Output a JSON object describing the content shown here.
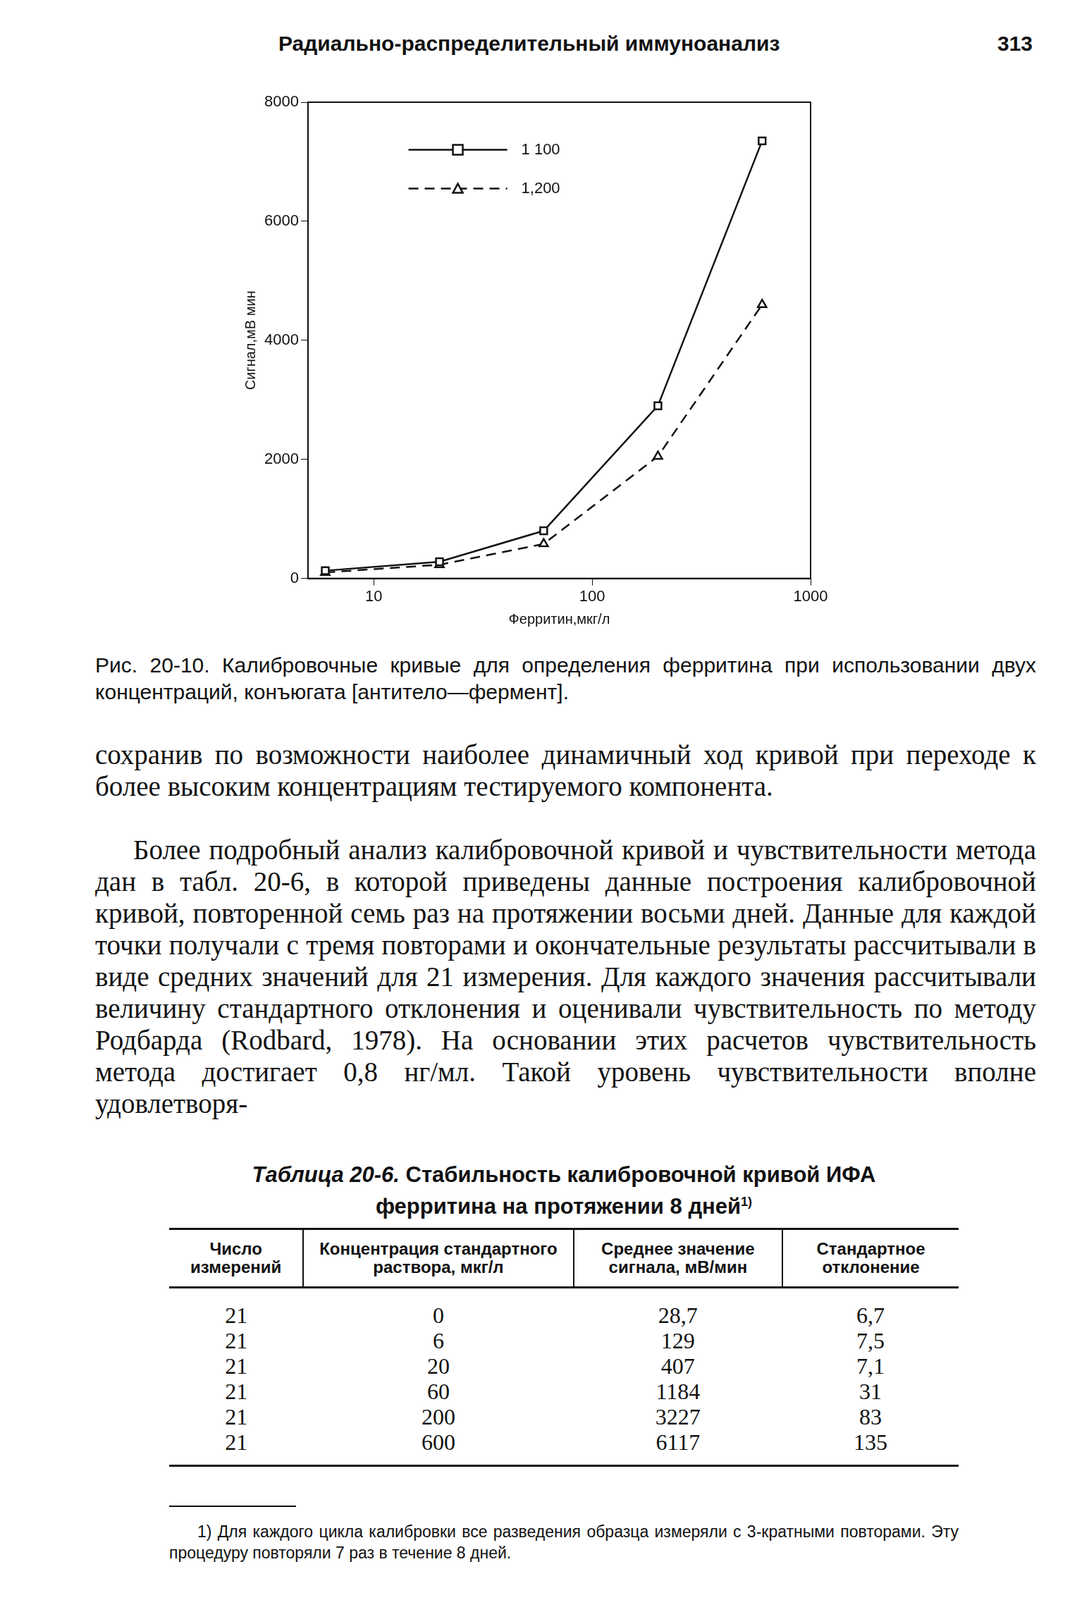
{
  "header": {
    "title": "Радиально-распределительный иммуноанализ",
    "page": "313"
  },
  "chart_data": {
    "type": "line",
    "x_label": "Ферритин,мкг/л",
    "y_label": "Сигнал,мВ мин",
    "series": [
      {
        "name": "1 100",
        "color": "#111111",
        "marker": "square",
        "line_style": "solid",
        "x": [
          6,
          20,
          60,
          200,
          600
        ],
        "values": [
          130,
          280,
          800,
          2900,
          7350
        ]
      },
      {
        "name": "1,200",
        "color": "#111111",
        "marker": "triangle",
        "line_style": "dashed",
        "x": [
          6,
          20,
          60,
          200,
          600
        ],
        "values": [
          100,
          230,
          580,
          2050,
          4600
        ]
      }
    ],
    "log": "x",
    "xlim": [
      5,
      1000
    ],
    "xticks": [
      10,
      100,
      1000
    ],
    "ylim": [
      0,
      8000
    ],
    "yticks": [
      0,
      2000,
      4000,
      6000,
      8000
    ],
    "grid": false,
    "legend": "upper left"
  },
  "caption": "Рис. 20-10. Калибровочные кривые для определения ферритина при использовании двух концентраций, конъюгата [антитело—фермент].",
  "body": [
    "сохранив по возможности наиболее динамичный ход кривой при переходе к более высоким концентрациям тестируемого компонента.",
    "Более подробный анализ калибровочной кривой и чувствительности метода дан в табл. 20-6, в которой приведены данные построения калибровочной кривой, повторенной семь раз на протяжении восьми дней. Данные для каждой точки получали с тремя повторами и окончательные результаты рассчитывали в виде средних значений для 21 измерения. Для каждого значения рассчитывали величину стандартного отклонения и оценивали чувствительность по методу Родбарда (Rodbard, 1978). На основании этих расчетов чувствительность метода достигает 0,8 нг/мл. Такой уровень чувствительности вполне удовлетворя-"
  ],
  "table": {
    "label": "Таблица 20-6.",
    "title": "Стабильность калибровочной кривой ИФА ферритина на протяжении 8 дней",
    "note_mark": "1)",
    "columns": [
      "Число измерений",
      "Концентрация стандартного раствора, мкг/л",
      "Среднее значение сигнала, мВ/мин",
      "Стандартное отклонение"
    ],
    "rows": [
      [
        "21",
        "0",
        "28,7",
        "6,7"
      ],
      [
        "21",
        "6",
        "129",
        "7,5"
      ],
      [
        "21",
        "20",
        "407",
        "7,1"
      ],
      [
        "21",
        "60",
        "1184",
        "31"
      ],
      [
        "21",
        "200",
        "3227",
        "83"
      ],
      [
        "21",
        "600",
        "6117",
        "135"
      ]
    ]
  },
  "footnote": "1) Для каждого цикла калибровки все разведения образца измеряли с 3-кратными повторами. Эту процедуру повторяли 7 раз в течение 8 дней."
}
